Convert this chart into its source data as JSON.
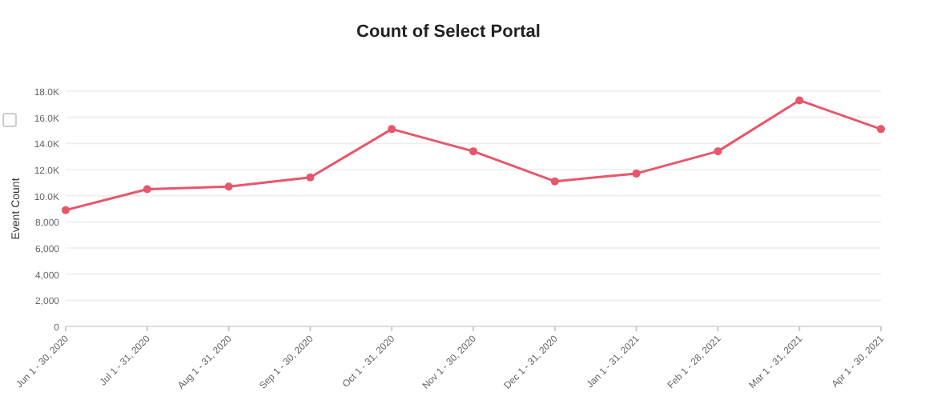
{
  "chart_data": {
    "type": "line",
    "title": "Count of Select Portal",
    "ylabel": "Event Count",
    "categories": [
      "Jun 1 - 30, 2020",
      "Jul 1 - 31, 2020",
      "Aug 1 - 31, 2020",
      "Sep 1 - 30, 2020",
      "Oct 1 - 31, 2020",
      "Nov 1 - 30, 2020",
      "Dec 1 - 31, 2020",
      "Jan 1 - 31, 2021",
      "Feb 1 - 28, 2021",
      "Mar 1 - 31, 2021",
      "Apr 1 - 30, 2021"
    ],
    "series": [
      {
        "color": "#e8566b",
        "values": [
          8900,
          10500,
          10700,
          11400,
          15100,
          13400,
          11100,
          11700,
          13400,
          17300,
          15100
        ]
      }
    ],
    "ylim": [
      0,
      18000
    ],
    "yticks": [
      0,
      {
        "value": 2000,
        "label": "2,000"
      },
      {
        "value": 4000,
        "label": "4,000"
      },
      {
        "value": 6000,
        "label": "6,000"
      },
      {
        "value": 8000,
        "label": "8,000"
      },
      {
        "value": 10000,
        "label": "10.0K"
      },
      {
        "value": 12000,
        "label": "12.0K"
      },
      {
        "value": 14000,
        "label": "14.0K"
      },
      {
        "value": 16000,
        "label": "16.0K"
      },
      {
        "value": 18000,
        "label": "18.0K"
      }
    ],
    "grid": "y",
    "marker": "circle",
    "line_style": "solid"
  }
}
